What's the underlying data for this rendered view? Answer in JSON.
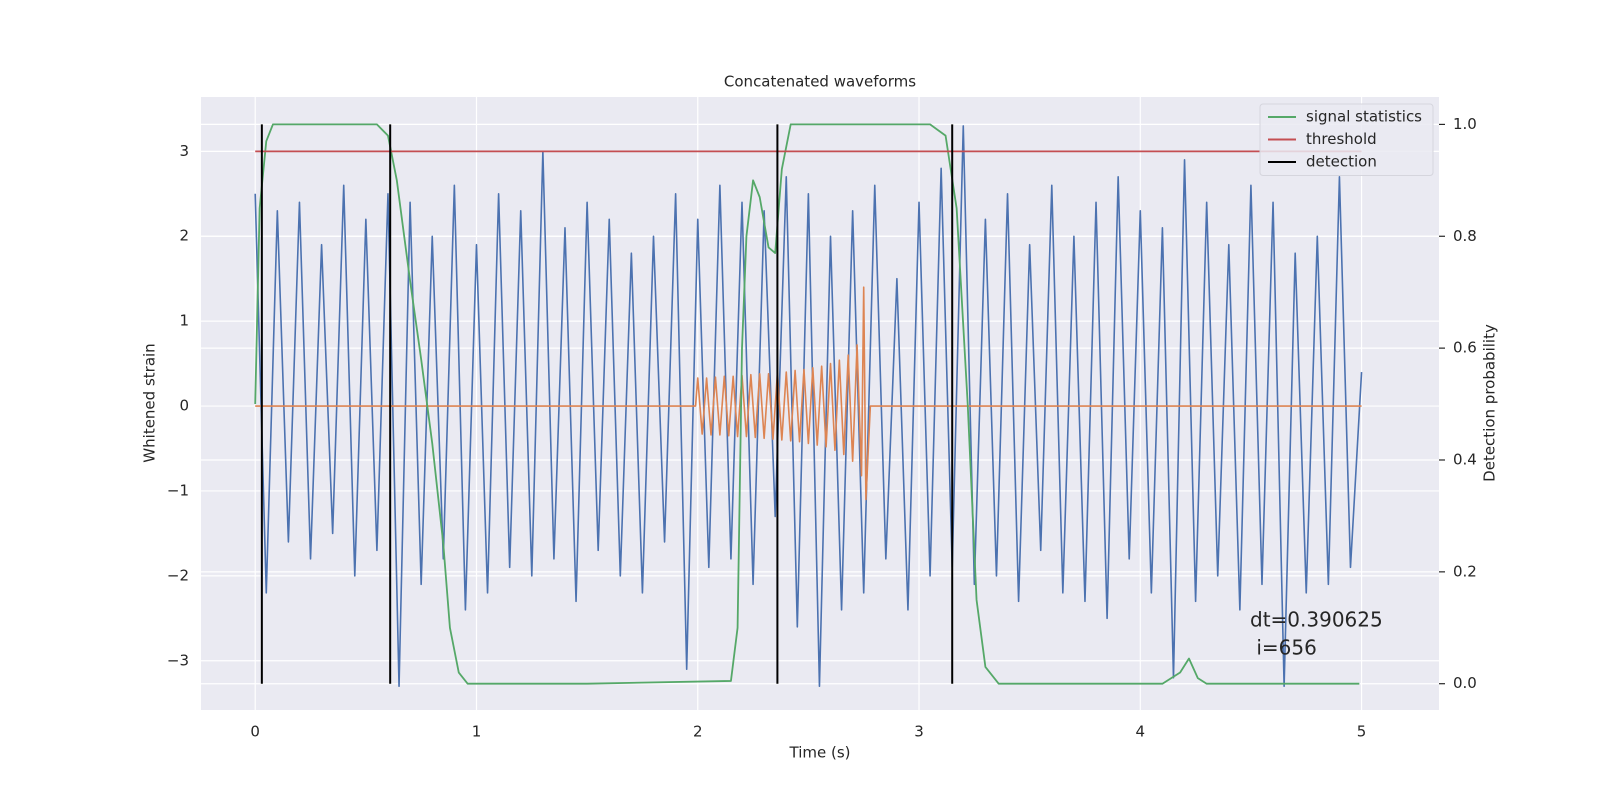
{
  "chart_data": {
    "type": "line",
    "title": "Concatenated waveforms",
    "xlabel": "Time (s)",
    "ylabel": "Whitened strain",
    "y2label": "Detection probability",
    "xlim": [
      -0.245,
      5.35
    ],
    "ylim": [
      -3.58,
      3.64
    ],
    "y2lim": [
      -0.047,
      1.049
    ],
    "xticks": [
      0,
      1,
      2,
      3,
      4,
      5
    ],
    "yticks": [
      {
        "value": -3,
        "label": "−3"
      },
      {
        "value": -2,
        "label": "−2"
      },
      {
        "value": -1,
        "label": "−1"
      },
      0,
      1,
      2,
      3
    ],
    "y2ticks": [
      {
        "value": 0,
        "label": "0.0"
      },
      0.2,
      0.4,
      0.6,
      0.8,
      {
        "value": 1,
        "label": "1.0"
      }
    ],
    "grid": true,
    "legend": "upper right",
    "annotation": [
      "dt=0.390625",
      " i=656"
    ],
    "series": [
      {
        "color": "#4c72b0",
        "x": [
          0,
          0.05,
          0.1,
          0.15,
          0.2,
          0.25,
          0.3,
          0.35,
          0.4,
          0.45,
          0.5,
          0.55,
          0.6,
          0.65,
          0.7,
          0.75,
          0.8,
          0.85,
          0.9,
          0.95,
          1,
          1.05,
          1.1,
          1.15,
          1.2,
          1.25,
          1.3,
          1.35,
          1.4,
          1.45,
          1.5,
          1.55,
          1.6,
          1.65,
          1.7,
          1.75,
          1.8,
          1.85,
          1.9,
          1.95,
          2,
          2.05,
          2.1,
          2.15,
          2.2,
          2.25,
          2.3,
          2.35,
          2.4,
          2.45,
          2.5,
          2.55,
          2.6,
          2.65,
          2.7,
          2.75,
          2.8,
          2.85,
          2.9,
          2.95,
          3,
          3.05,
          3.1,
          3.15,
          3.2,
          3.25,
          3.3,
          3.35,
          3.4,
          3.45,
          3.5,
          3.55,
          3.6,
          3.65,
          3.7,
          3.75,
          3.8,
          3.85,
          3.9,
          3.95,
          4,
          4.05,
          4.1,
          4.15,
          4.2,
          4.25,
          4.3,
          4.35,
          4.4,
          4.45,
          4.5,
          4.55,
          4.6,
          4.65,
          4.7,
          4.75,
          4.8,
          4.85,
          4.9,
          4.95,
          5
        ],
        "values": [
          2.5,
          -2.2,
          2.3,
          -1.6,
          2.4,
          -1.8,
          1.9,
          -1.5,
          2.6,
          -2.0,
          2.2,
          -1.7,
          2.5,
          -3.3,
          2.4,
          -2.1,
          2.0,
          -1.8,
          2.6,
          -2.4,
          1.9,
          -2.2,
          2.5,
          -1.9,
          2.3,
          -2.0,
          3.0,
          -1.8,
          2.1,
          -2.3,
          2.4,
          -1.7,
          2.2,
          -2.0,
          1.8,
          -2.2,
          2.0,
          -1.6,
          2.5,
          -3.1,
          2.2,
          -1.9,
          2.6,
          -1.8,
          2.4,
          -2.1,
          2.3,
          -1.3,
          2.7,
          -2.6,
          2.5,
          -3.3,
          2.0,
          -2.4,
          2.3,
          -2.2,
          2.6,
          -1.8,
          1.5,
          -2.4,
          2.4,
          -2.0,
          2.8,
          -1.9,
          3.3,
          -2.1,
          2.2,
          -2.0,
          2.5,
          -2.3,
          1.9,
          -1.7,
          2.6,
          -2.2,
          2.0,
          -2.3,
          2.4,
          -2.5,
          2.7,
          -1.8,
          2.3,
          -2.2,
          2.1,
          -3.2,
          2.9,
          -2.3,
          2.4,
          -2.0,
          1.9,
          -2.4,
          2.6,
          -2.1,
          2.4,
          -3.3,
          1.8,
          -2.2,
          2.0,
          -2.1,
          2.7,
          -1.9,
          0.4
        ]
      },
      {
        "color": "#dd8452",
        "x": [
          0,
          1.99,
          2.0,
          2.02,
          2.04,
          2.06,
          2.08,
          2.1,
          2.12,
          2.14,
          2.16,
          2.18,
          2.2,
          2.22,
          2.24,
          2.26,
          2.28,
          2.3,
          2.32,
          2.34,
          2.36,
          2.38,
          2.4,
          2.42,
          2.44,
          2.46,
          2.48,
          2.5,
          2.52,
          2.54,
          2.56,
          2.58,
          2.6,
          2.62,
          2.64,
          2.66,
          2.68,
          2.7,
          2.72,
          2.74,
          2.75,
          2.76,
          2.78,
          5
        ],
        "values": [
          0,
          0,
          0.33,
          -0.33,
          0.33,
          -0.34,
          0.34,
          -0.34,
          0.35,
          -0.35,
          0.35,
          -0.36,
          0.36,
          -0.36,
          0.37,
          -0.37,
          0.38,
          -0.38,
          0.38,
          -0.39,
          0.39,
          -0.4,
          0.4,
          -0.41,
          0.42,
          -0.42,
          0.43,
          -0.44,
          0.45,
          -0.46,
          0.47,
          -0.48,
          0.5,
          -0.52,
          0.54,
          -0.57,
          0.6,
          -0.65,
          0.72,
          -0.82,
          1.4,
          -1.1,
          0,
          0
        ]
      },
      {
        "name": "signal statistics",
        "color": "#55a868",
        "axis": "y2",
        "x": [
          0,
          0.02,
          0.05,
          0.08,
          0.12,
          0.55,
          0.6,
          0.64,
          0.7,
          0.75,
          0.8,
          0.85,
          0.88,
          0.92,
          0.96,
          1.5,
          2.15,
          2.18,
          2.2,
          2.22,
          2.25,
          2.28,
          2.32,
          2.35,
          2.38,
          2.42,
          3.05,
          3.12,
          3.17,
          3.22,
          3.26,
          3.3,
          3.36,
          4.1,
          4.18,
          4.22,
          4.26,
          4.3,
          4.99
        ],
        "values": [
          0.5,
          0.85,
          0.97,
          1.0,
          1.0,
          1.0,
          0.98,
          0.9,
          0.72,
          0.58,
          0.43,
          0.25,
          0.1,
          0.02,
          0.0,
          0.0,
          0.005,
          0.1,
          0.6,
          0.8,
          0.9,
          0.87,
          0.78,
          0.77,
          0.92,
          1.0,
          1.0,
          0.98,
          0.85,
          0.5,
          0.15,
          0.03,
          0.0,
          0.0,
          0.02,
          0.045,
          0.01,
          0.0,
          0.0
        ]
      },
      {
        "name": "threshold",
        "color": "#c44e52",
        "x": [
          0,
          5
        ],
        "values": [
          3,
          3
        ]
      },
      {
        "name": "detection",
        "color": "#000000",
        "type": "vline",
        "axis": "y2",
        "span": [
          0,
          1
        ],
        "x": [
          0.03,
          0.61,
          2.36,
          3.15
        ]
      }
    ]
  }
}
